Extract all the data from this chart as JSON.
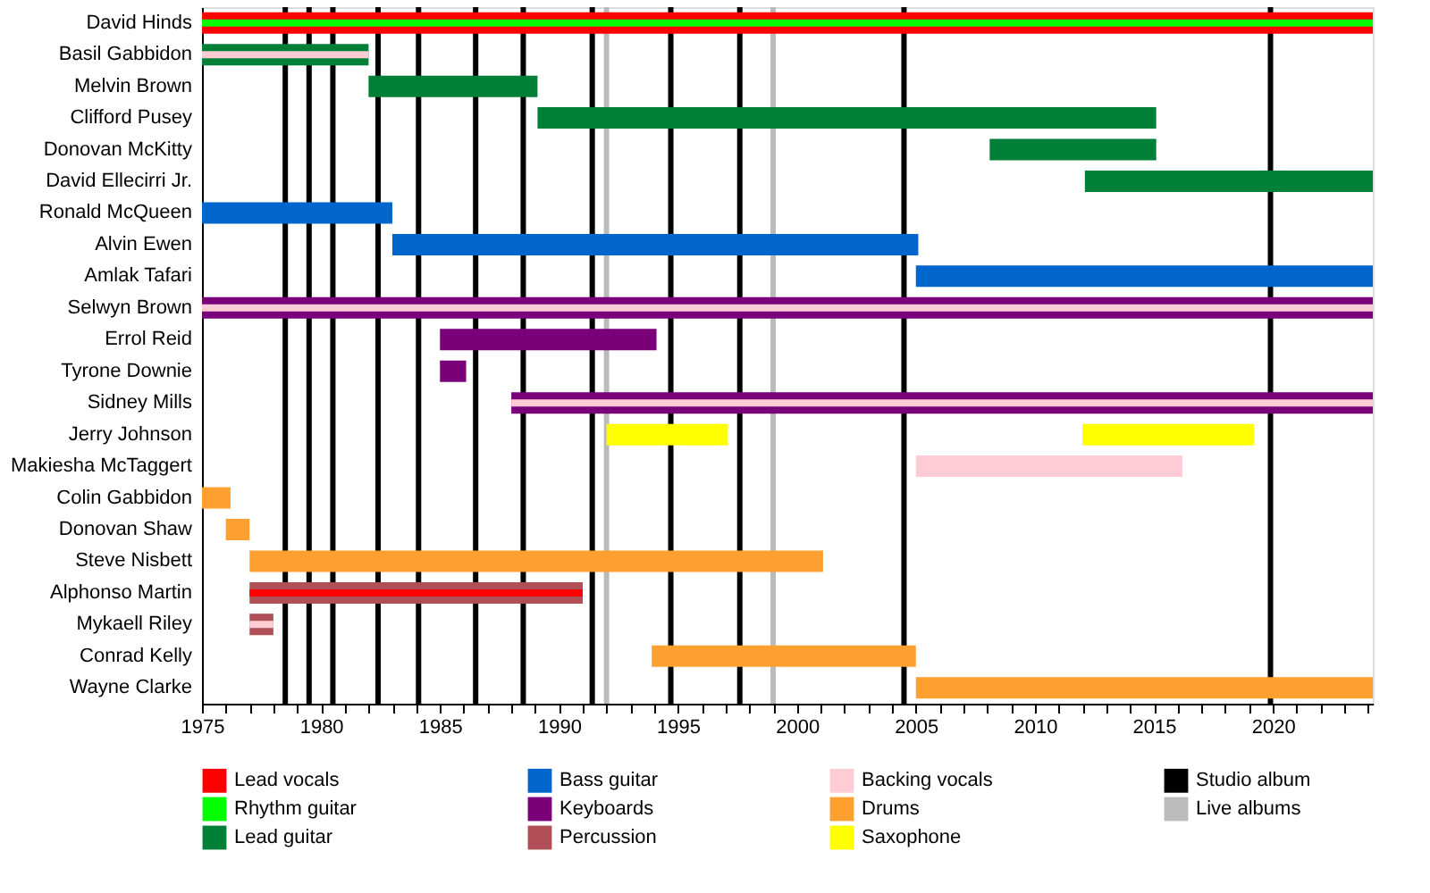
{
  "chart_data": {
    "type": "bar",
    "orientation": "horizontal",
    "categories": [
      "David Hinds",
      "Basil Gabbidon",
      "Melvin Brown",
      "Clifford Pusey",
      "Donovan McKitty",
      "David Ellecirri Jr.",
      "Ronald McQueen",
      "Alvin Ewen",
      "Amlak Tafari",
      "Selwyn Brown",
      "Errol Reid",
      "Tyrone Downie",
      "Sidney Mills",
      "Jerry Johnson",
      "Makiesha McTaggert",
      "Colin Gabbidon",
      "Donovan Shaw",
      "Steve Nisbett",
      "Alphonso Martin",
      "Mykaell Riley",
      "Conrad Kelly",
      "Wayne Clarke"
    ],
    "series": [
      {
        "name": "Lead vocals",
        "color": "#ff0000",
        "base": [
          1975,
          null,
          null,
          null,
          null,
          null,
          null,
          null,
          null,
          null,
          null,
          null,
          null,
          null,
          null,
          null,
          null,
          null,
          null,
          null,
          null,
          null
        ],
        "values": [
          49.2,
          null,
          null,
          null,
          null,
          null,
          null,
          null,
          null,
          null,
          null,
          null,
          null,
          null,
          null,
          null,
          null,
          null,
          null,
          null,
          null,
          null
        ]
      },
      {
        "name": "Rhythm guitar",
        "color": "#00ff00",
        "base": [
          1975,
          null,
          null,
          null,
          null,
          null,
          null,
          null,
          null,
          null,
          null,
          null,
          null,
          null,
          null,
          null,
          null,
          null,
          null,
          null,
          null,
          null
        ],
        "values": [
          49.2,
          null,
          null,
          null,
          null,
          null,
          null,
          null,
          null,
          null,
          null,
          null,
          null,
          null,
          null,
          null,
          null,
          null,
          null,
          null,
          null,
          null
        ]
      },
      {
        "name": "Lead guitar",
        "color": "#008037",
        "base": [
          null,
          1975,
          1982,
          1989.1,
          2008.1,
          2012.1,
          null,
          null,
          null,
          null,
          null,
          null,
          null,
          null,
          null,
          null,
          null,
          null,
          null,
          null,
          null,
          null
        ],
        "values": [
          null,
          7,
          7.1,
          26,
          7,
          12.1,
          null,
          null,
          null,
          null,
          null,
          null,
          null,
          null,
          null,
          null,
          null,
          null,
          null,
          null,
          null,
          null
        ]
      },
      {
        "name": "Bass guitar",
        "color": "#0066cc",
        "base": [
          null,
          null,
          null,
          null,
          null,
          null,
          1975,
          1983,
          2005,
          null,
          null,
          null,
          null,
          null,
          null,
          null,
          null,
          null,
          null,
          null,
          null,
          null
        ],
        "values": [
          null,
          null,
          null,
          null,
          null,
          null,
          8,
          22.1,
          19.2,
          null,
          null,
          null,
          null,
          null,
          null,
          null,
          null,
          null,
          null,
          null,
          null,
          null
        ]
      },
      {
        "name": "Keyboards",
        "color": "#7a007a",
        "base": [
          null,
          null,
          null,
          null,
          null,
          null,
          null,
          null,
          null,
          1975,
          1985,
          1985,
          1988,
          null,
          null,
          null,
          null,
          null,
          null,
          null,
          null,
          null
        ],
        "values": [
          null,
          null,
          null,
          null,
          null,
          null,
          null,
          null,
          null,
          49.2,
          9.1,
          1.1,
          36.2,
          null,
          null,
          null,
          null,
          null,
          null,
          null,
          null,
          null
        ]
      },
      {
        "name": "Percussion",
        "color": "#b04f55",
        "base": [
          null,
          null,
          null,
          null,
          null,
          null,
          null,
          null,
          null,
          null,
          null,
          null,
          null,
          null,
          null,
          null,
          null,
          null,
          1977,
          1977,
          null,
          null
        ],
        "values": [
          null,
          null,
          null,
          null,
          null,
          null,
          null,
          null,
          null,
          null,
          null,
          null,
          null,
          null,
          null,
          null,
          null,
          null,
          14,
          1,
          null,
          null
        ]
      },
      {
        "name": "Backing vocals",
        "color": "#ffccd5",
        "base": [
          null,
          1975,
          null,
          null,
          null,
          null,
          null,
          null,
          null,
          1975,
          null,
          null,
          1988,
          null,
          2005,
          null,
          null,
          null,
          null,
          1977,
          null,
          null
        ],
        "values": [
          null,
          7,
          null,
          null,
          null,
          null,
          null,
          null,
          null,
          49.2,
          null,
          null,
          36.2,
          null,
          11.2,
          null,
          null,
          null,
          null,
          1,
          null,
          null
        ]
      },
      {
        "name": "Drums",
        "color": "#ffa030",
        "base": [
          null,
          null,
          null,
          null,
          null,
          null,
          null,
          null,
          null,
          null,
          null,
          null,
          null,
          null,
          null,
          1975,
          1976,
          1977,
          null,
          null,
          1993.9,
          2005
        ],
        "values": [
          null,
          null,
          null,
          null,
          null,
          null,
          null,
          null,
          null,
          null,
          null,
          null,
          null,
          null,
          null,
          1.2,
          1,
          24.1,
          null,
          null,
          11.1,
          19.2
        ]
      },
      {
        "name": "Saxophone",
        "color": "#ffff00",
        "base": [
          null,
          null,
          null,
          null,
          null,
          null,
          null,
          null,
          null,
          null,
          null,
          null,
          null,
          1992,
          null,
          null,
          null,
          null,
          null,
          null,
          null,
          null
        ],
        "values": [
          null,
          null,
          null,
          null,
          null,
          null,
          null,
          null,
          null,
          null,
          null,
          null,
          null,
          5.1,
          null,
          null,
          null,
          null,
          null,
          null,
          null,
          null
        ]
      },
      {
        "color": "#ffff00",
        "base": [
          null,
          null,
          null,
          null,
          null,
          null,
          null,
          null,
          null,
          null,
          null,
          null,
          null,
          2012,
          null,
          null,
          null,
          null,
          null,
          null,
          null,
          null
        ],
        "values": [
          null,
          null,
          null,
          null,
          null,
          null,
          null,
          null,
          null,
          null,
          null,
          null,
          null,
          7.2,
          null,
          null,
          null,
          null,
          null,
          null,
          null,
          null
        ]
      },
      {
        "color": "#ff0000",
        "base": [
          null,
          null,
          null,
          null,
          null,
          null,
          null,
          null,
          null,
          null,
          null,
          null,
          null,
          null,
          null,
          null,
          null,
          null,
          1977,
          null,
          null,
          null
        ],
        "values": [
          null,
          null,
          null,
          null,
          null,
          null,
          null,
          null,
          null,
          null,
          null,
          null,
          null,
          null,
          null,
          null,
          null,
          null,
          14,
          null,
          null,
          null
        ]
      }
    ],
    "ref_lines": [
      {
        "axis": "x",
        "value": 1978.5,
        "color": "#000000",
        "label": "Studio album"
      },
      {
        "axis": "x",
        "value": 1979.5,
        "color": "#000000"
      },
      {
        "axis": "x",
        "value": 1980.5,
        "color": "#000000"
      },
      {
        "axis": "x",
        "value": 1982.4,
        "color": "#000000"
      },
      {
        "axis": "x",
        "value": 1984.1,
        "color": "#000000"
      },
      {
        "axis": "x",
        "value": 1986.5,
        "color": "#000000"
      },
      {
        "axis": "x",
        "value": 1988.5,
        "color": "#000000"
      },
      {
        "axis": "x",
        "value": 1991.4,
        "color": "#000000"
      },
      {
        "axis": "x",
        "value": 1994.7,
        "color": "#000000"
      },
      {
        "axis": "x",
        "value": 1997.6,
        "color": "#000000"
      },
      {
        "axis": "x",
        "value": 2004.5,
        "color": "#000000"
      },
      {
        "axis": "x",
        "value": 2019.9,
        "color": "#000000"
      },
      {
        "axis": "x",
        "value": 1992,
        "color": "#bbbbbb",
        "label": "Live albums"
      },
      {
        "axis": "x",
        "value": 1999,
        "color": "#bbbbbb"
      }
    ],
    "xlim": [
      1975,
      2024.2
    ],
    "xticks": [
      1975,
      {
        "value": 1976,
        "label": null
      },
      {
        "value": 1977,
        "label": null
      },
      {
        "value": 1978,
        "label": null
      },
      {
        "value": 1979,
        "label": null
      },
      1980,
      {
        "value": 1981,
        "label": null
      },
      {
        "value": 1982,
        "label": null
      },
      {
        "value": 1983,
        "label": null
      },
      {
        "value": 1984,
        "label": null
      },
      1985,
      {
        "value": 1986,
        "label": null
      },
      {
        "value": 1987,
        "label": null
      },
      {
        "value": 1988,
        "label": null
      },
      {
        "value": 1989,
        "label": null
      },
      1990,
      {
        "value": 1991,
        "label": null
      },
      {
        "value": 1992,
        "label": null
      },
      {
        "value": 1993,
        "label": null
      },
      {
        "value": 1994,
        "label": null
      },
      1995,
      {
        "value": 1996,
        "label": null
      },
      {
        "value": 1997,
        "label": null
      },
      {
        "value": 1998,
        "label": null
      },
      {
        "value": 1999,
        "label": null
      },
      2000,
      {
        "value": 2001,
        "label": null
      },
      {
        "value": 2002,
        "label": null
      },
      {
        "value": 2003,
        "label": null
      },
      {
        "value": 2004,
        "label": null
      },
      2005,
      {
        "value": 2006,
        "label": null
      },
      {
        "value": 2007,
        "label": null
      },
      {
        "value": 2008,
        "label": null
      },
      {
        "value": 2009,
        "label": null
      },
      2010,
      {
        "value": 2011,
        "label": null
      },
      {
        "value": 2012,
        "label": null
      },
      {
        "value": 2013,
        "label": null
      },
      {
        "value": 2014,
        "label": null
      },
      2015,
      {
        "value": 2016,
        "label": null
      },
      {
        "value": 2017,
        "label": null
      },
      {
        "value": 2018,
        "label": null
      },
      {
        "value": 2019,
        "label": null
      },
      2020,
      {
        "value": 2021,
        "label": null
      },
      {
        "value": 2022,
        "label": null
      },
      {
        "value": 2023,
        "label": null
      },
      {
        "value": 2024,
        "label": null
      }
    ],
    "grid": false,
    "legend": "bottom"
  }
}
